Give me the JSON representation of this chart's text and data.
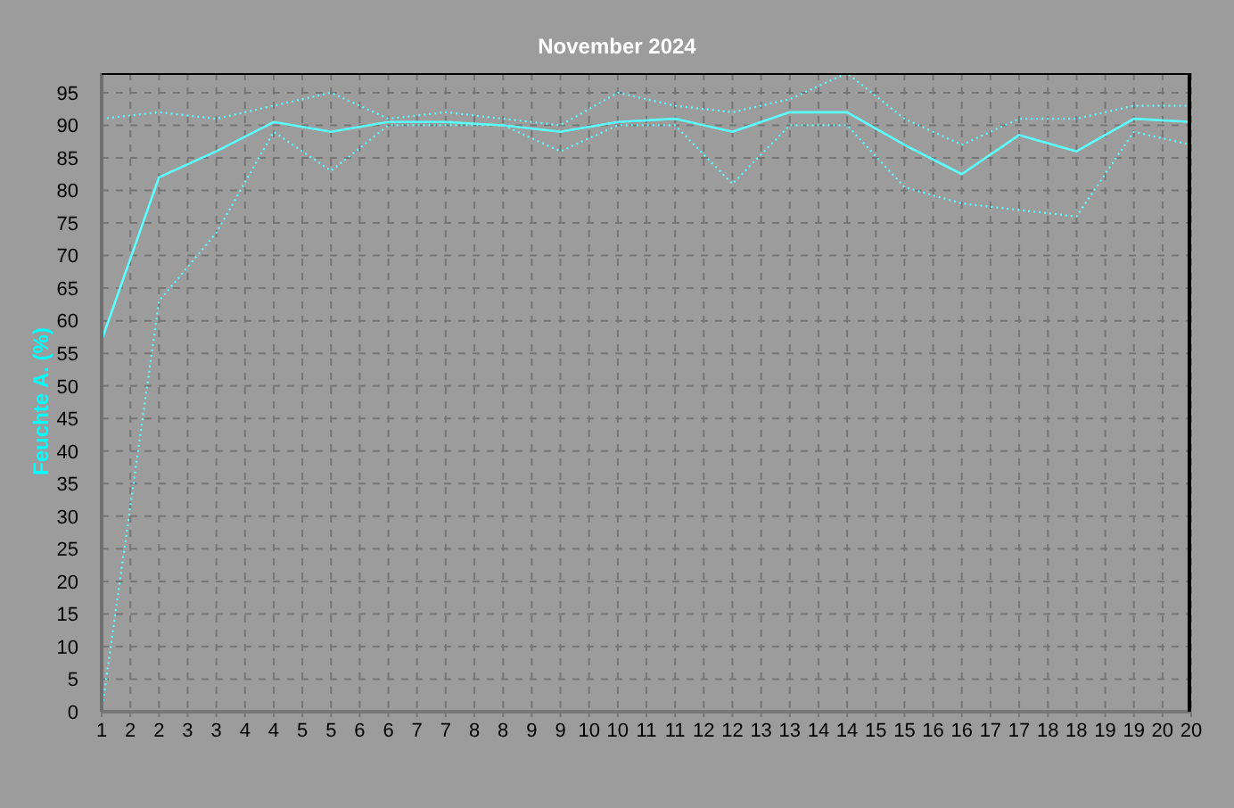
{
  "chart_data": {
    "type": "line",
    "title": "November 2024",
    "ylabel": "Feuchte A. (%)",
    "x": [
      1,
      2,
      3,
      4,
      5,
      6,
      7,
      8,
      9,
      10,
      11,
      12,
      13,
      14,
      15,
      16,
      17,
      18,
      19,
      20
    ],
    "xlim": [
      1,
      20
    ],
    "xticks": [
      1,
      {
        "value": 1.5,
        "label": "2"
      },
      2,
      {
        "value": 2.5,
        "label": "3"
      },
      3,
      {
        "value": 3.5,
        "label": "4"
      },
      4,
      {
        "value": 4.5,
        "label": "5"
      },
      5,
      {
        "value": 5.5,
        "label": "6"
      },
      6,
      {
        "value": 6.5,
        "label": "7"
      },
      7,
      {
        "value": 7.5,
        "label": "8"
      },
      8,
      {
        "value": 8.5,
        "label": "9"
      },
      9,
      {
        "value": 9.5,
        "label": "10"
      },
      10,
      {
        "value": 10.5,
        "label": "11"
      },
      11,
      {
        "value": 11.5,
        "label": "12"
      },
      12,
      {
        "value": 12.5,
        "label": "13"
      },
      13,
      {
        "value": 13.5,
        "label": "14"
      },
      14,
      {
        "value": 14.5,
        "label": "15"
      },
      15,
      {
        "value": 15.5,
        "label": "16"
      },
      16,
      {
        "value": 16.5,
        "label": "17"
      },
      17,
      {
        "value": 17.5,
        "label": "18"
      },
      18,
      {
        "value": 18.5,
        "label": "19"
      },
      19,
      {
        "value": 19.5,
        "label": "20"
      },
      20
    ],
    "ylim": [
      0,
      98
    ],
    "yticks": [
      0,
      5,
      10,
      15,
      20,
      25,
      30,
      35,
      40,
      45,
      50,
      55,
      60,
      65,
      70,
      75,
      80,
      85,
      90,
      95
    ],
    "grid": true,
    "series": [
      {
        "color": "#5cffff",
        "line_style": "dotted",
        "values": [
          91,
          92,
          91,
          93,
          95,
          91,
          92,
          91,
          90,
          95,
          93,
          92,
          94,
          98,
          91,
          87,
          91,
          91,
          93,
          93
        ]
      },
      {
        "color": "#5cffff",
        "line_style": "solid",
        "values": [
          57,
          82,
          86,
          90.5,
          89,
          90.5,
          90.5,
          90,
          89,
          90.5,
          91,
          89,
          92,
          92,
          87,
          82.5,
          88.5,
          86,
          91,
          90.5
        ]
      },
      {
        "color": "#5cffff",
        "line_style": "dotted",
        "values": [
          0,
          63,
          73.5,
          89,
          83,
          90,
          90,
          90,
          86,
          90,
          90,
          81,
          90,
          90,
          80.5,
          78,
          77,
          76,
          89,
          87
        ]
      }
    ]
  }
}
